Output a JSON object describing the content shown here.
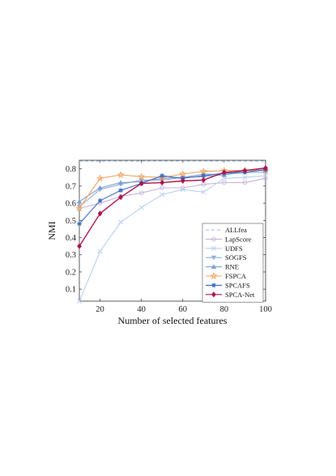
{
  "chart_data": {
    "type": "line",
    "xlabel": "Number of selected features",
    "ylabel": "NMI",
    "xlim": [
      10,
      100
    ],
    "ylim": [
      0.03,
      0.85
    ],
    "x_ticks": [
      20,
      40,
      60,
      80,
      100
    ],
    "y_ticks": [
      0.1,
      0.2,
      0.3,
      0.4,
      0.5,
      0.6,
      0.7,
      0.8
    ],
    "grid": false,
    "legend_position": "bottom-right",
    "x": [
      10,
      20,
      30,
      40,
      50,
      60,
      70,
      80,
      90,
      100
    ],
    "series": [
      {
        "name": "ALLfea",
        "color": "#9fc0e6",
        "style": "dashed",
        "marker": "none",
        "values": [
          0.845,
          0.845,
          0.845,
          0.845,
          0.845,
          0.845,
          0.845,
          0.845,
          0.845,
          0.845
        ]
      },
      {
        "name": "LapScore",
        "color": "#c9b3d8",
        "style": "solid",
        "marker": "circle",
        "values": [
          0.57,
          0.6,
          0.64,
          0.66,
          0.69,
          0.69,
          0.71,
          0.72,
          0.72,
          0.745
        ]
      },
      {
        "name": "UDFS",
        "color": "#b9cff0",
        "style": "solid",
        "marker": "x",
        "values": [
          0.03,
          0.32,
          0.49,
          0.575,
          0.65,
          0.68,
          0.665,
          0.745,
          0.75,
          0.76
        ]
      },
      {
        "name": "SOGFS",
        "color": "#8fb0d8",
        "style": "solid",
        "marker": "triangle-down",
        "values": [
          0.58,
          0.68,
          0.71,
          0.735,
          0.735,
          0.75,
          0.755,
          0.765,
          0.78,
          0.78
        ]
      },
      {
        "name": "RNE",
        "color": "#7f9fcf",
        "style": "solid",
        "marker": "triangle-up",
        "values": [
          0.61,
          0.69,
          0.72,
          0.725,
          0.745,
          0.75,
          0.77,
          0.765,
          0.79,
          0.795
        ]
      },
      {
        "name": "FSPCA",
        "color": "#f2a35e",
        "style": "solid",
        "marker": "star",
        "values": [
          0.57,
          0.745,
          0.765,
          0.755,
          0.75,
          0.77,
          0.785,
          0.79,
          0.79,
          0.79
        ]
      },
      {
        "name": "SPCAFS",
        "color": "#3f6cc1",
        "style": "solid",
        "marker": "asterisk",
        "values": [
          0.48,
          0.615,
          0.675,
          0.715,
          0.76,
          0.745,
          0.76,
          0.775,
          0.78,
          0.795
        ]
      },
      {
        "name": "SPCA-Net",
        "color": "#b0134f",
        "style": "solid",
        "marker": "diamond",
        "values": [
          0.35,
          0.54,
          0.635,
          0.715,
          0.72,
          0.73,
          0.735,
          0.78,
          0.79,
          0.805
        ]
      }
    ]
  }
}
